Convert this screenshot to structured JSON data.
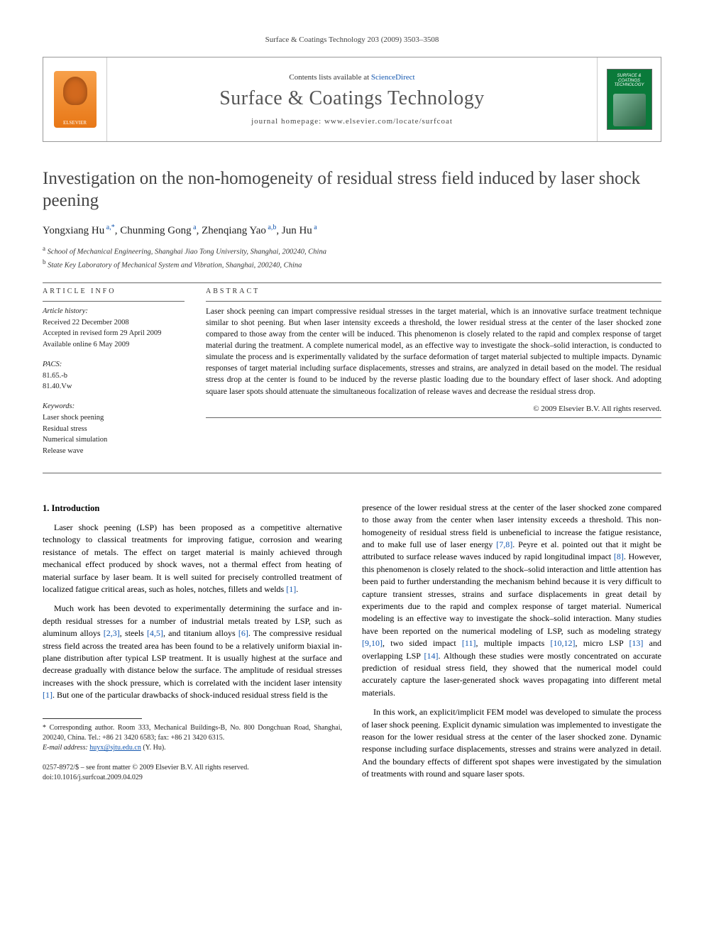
{
  "running_head": "Surface & Coatings Technology 203 (2009) 3503–3508",
  "banner": {
    "elsevier_label": "ELSEVIER",
    "contents_prefix": "Contents lists available at ",
    "contents_link": "ScienceDirect",
    "journal_title": "Surface & Coatings Technology",
    "homepage_prefix": "journal homepage: ",
    "homepage_url": "www.elsevier.com/locate/surfcoat",
    "cover_title": "SURFACE & COATINGS TECHNOLOGY"
  },
  "article": {
    "title": "Investigation on the non-homogeneity of residual stress field induced by laser shock peening",
    "authors_html": {
      "a1": {
        "name": "Yongxiang Hu",
        "sup": "a,",
        "corr": "*"
      },
      "a2": {
        "name": "Chunming Gong",
        "sup": "a"
      },
      "a3": {
        "name": "Zhenqiang Yao",
        "sup": "a,b"
      },
      "a4": {
        "name": "Jun Hu",
        "sup": "a"
      },
      "sep": ", "
    },
    "affiliations": {
      "a": {
        "sup": "a",
        "text": "School of Mechanical Engineering, Shanghai Jiao Tong University, Shanghai, 200240, China"
      },
      "b": {
        "sup": "b",
        "text": "State Key Laboratory of Mechanical System and Vibration, Shanghai, 200240, China"
      }
    }
  },
  "meta": {
    "info_heading": "ARTICLE INFO",
    "abstract_heading": "ABSTRACT",
    "history_label": "Article history:",
    "history": {
      "received": "Received 22 December 2008",
      "revised": "Accepted in revised form 29 April 2009",
      "online": "Available online 6 May 2009"
    },
    "pacs_label": "PACS:",
    "pacs": [
      "81.65.-b",
      "81.40.Vw"
    ],
    "keywords_label": "Keywords:",
    "keywords": [
      "Laser shock peening",
      "Residual stress",
      "Numerical simulation",
      "Release wave"
    ]
  },
  "abstract": "Laser shock peening can impart compressive residual stresses in the target material, which is an innovative surface treatment technique similar to shot peening. But when laser intensity exceeds a threshold, the lower residual stress at the center of the laser shocked zone compared to those away from the center will be induced. This phenomenon is closely related to the rapid and complex response of target material during the treatment. A complete numerical model, as an effective way to investigate the shock–solid interaction, is conducted to simulate the process and is experimentally validated by the surface deformation of target material subjected to multiple impacts. Dynamic responses of target material including surface displacements, stresses and strains, are analyzed in detail based on the model. The residual stress drop at the center is found to be induced by the reverse plastic loading due to the boundary effect of laser shock. And adopting square laser spots should attenuate the simultaneous focalization of release waves and decrease the residual stress drop.",
  "copyright": "© 2009 Elsevier B.V. All rights reserved.",
  "body": {
    "section1_title": "1. Introduction",
    "p1": "Laser shock peening (LSP) has been proposed as a competitive alternative technology to classical treatments for improving fatigue, corrosion and wearing resistance of metals. The effect on target material is mainly achieved through mechanical effect produced by shock waves, not a thermal effect from heating of material surface by laser beam. It is well suited for precisely controlled treatment of localized fatigue critical areas, such as holes, notches, fillets and welds ",
    "p1_ref": "[1]",
    "p1_end": ".",
    "p2a": "Much work has been devoted to experimentally determining the surface and in-depth residual stresses for a number of industrial metals treated by LSP, such as aluminum alloys ",
    "p2_r1": "[2,3]",
    "p2b": ", steels ",
    "p2_r2": "[4,5]",
    "p2c": ", and titanium alloys ",
    "p2_r3": "[6]",
    "p2d": ". The compressive residual stress field across the treated area has been found to be a relatively uniform biaxial in-plane distribution after typical LSP treatment. It is usually highest at the surface and decrease gradually with distance below the surface. The amplitude of residual stresses increases with the shock pressure, which is correlated with the incident laser intensity ",
    "p2_r4": "[1]",
    "p2e": ". But one of the particular drawbacks of shock-induced residual stress field is the ",
    "p3a": "presence of the lower residual stress at the center of the laser shocked zone compared to those away from the center when laser intensity exceeds a threshold. This non-homogeneity of residual stress field is unbeneficial to increase the fatigue resistance, and to make full use of laser energy ",
    "p3_r1": "[7,8]",
    "p3b": ". Peyre et al. pointed out that it might be attributed to surface release waves induced by rapid longitudinal impact ",
    "p3_r2": "[8]",
    "p3c": ". However, this phenomenon is closely related to the shock–solid interaction and little attention has been paid to further understanding the mechanism behind because it is very difficult to capture transient stresses, strains and surface displacements in great detail by experiments due to the rapid and complex response of target material. Numerical modeling is an effective way to investigate the shock–solid interaction. Many studies have been reported on the numerical modeling of LSP, such as modeling strategy ",
    "p3_r3": "[9,10]",
    "p3d": ", two sided impact ",
    "p3_r4": "[11]",
    "p3e": ", multiple impacts ",
    "p3_r5": "[10,12]",
    "p3f": ", micro LSP ",
    "p3_r6": "[13]",
    "p3g": " and overlapping LSP ",
    "p3_r7": "[14]",
    "p3h": ". Although these studies were mostly concentrated on accurate prediction of residual stress field, they showed that the numerical model could accurately capture the laser-generated shock waves propagating into different metal materials.",
    "p4": "In this work, an explicit/implicit FEM model was developed to simulate the process of laser shock peening. Explicit dynamic simulation was implemented to investigate the reason for the lower residual stress at the center of the laser shocked zone. Dynamic response including surface displacements, stresses and strains were analyzed in detail. And the boundary effects of different spot shapes were investigated by the simulation of treatments with round and square laser spots."
  },
  "footnote": {
    "corr": "* Corresponding author. Room 333, Mechanical Buildings-B, No. 800 Dongchuan Road, Shanghai, 200240, China. Tel.: +86 21 3420 6583; fax: +86 21 3420 6315.",
    "email_label": "E-mail address:",
    "email": "huyx@sjtu.edu.cn",
    "email_suffix": "(Y. Hu)."
  },
  "bottom": {
    "line1": "0257-8972/$ – see front matter © 2009 Elsevier B.V. All rights reserved.",
    "line2": "doi:10.1016/j.surfcoat.2009.04.029"
  },
  "colors": {
    "link": "#1558b0",
    "banner_border": "#999999",
    "text": "#000000",
    "title_gray": "#434343"
  }
}
